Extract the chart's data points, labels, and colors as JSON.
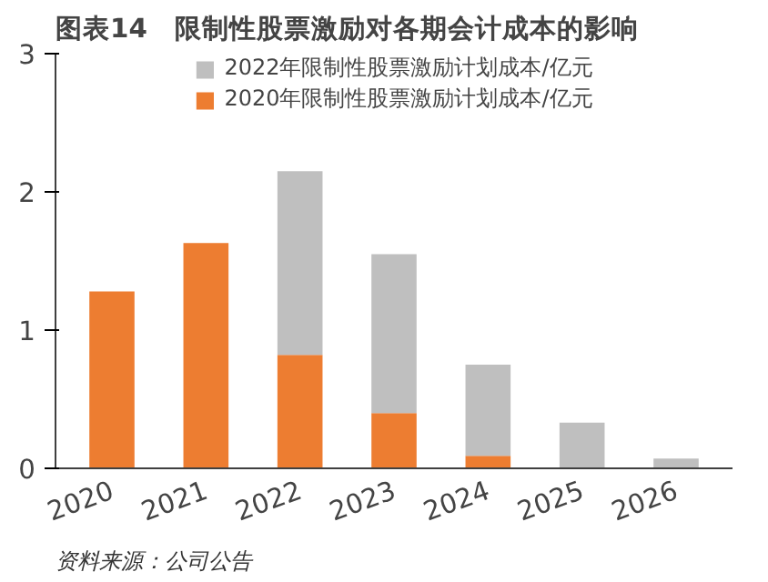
{
  "chart_data": {
    "type": "bar",
    "title": "图表14　限制性股票激励对各期会计成本的影响",
    "categories": [
      "2020",
      "2021",
      "2022",
      "2023",
      "2024",
      "2025",
      "2026"
    ],
    "stacked": true,
    "series": [
      {
        "name": "2020年限制性股票激励计划成本/亿元",
        "color": "#ed7d31",
        "values": [
          1.28,
          1.63,
          0.82,
          0.4,
          0.09,
          0,
          0
        ]
      },
      {
        "name": "2022年限制性股票激励计划成本/亿元",
        "color": "#bfbfbf",
        "values": [
          0,
          0,
          1.33,
          1.15,
          0.66,
          0.33,
          0.07
        ]
      }
    ],
    "ylim": [
      0,
      3
    ],
    "yticks": [
      0,
      1,
      2,
      3
    ],
    "grid": false,
    "legend": "top",
    "annotations": [
      "资料来源：公司公告"
    ]
  }
}
